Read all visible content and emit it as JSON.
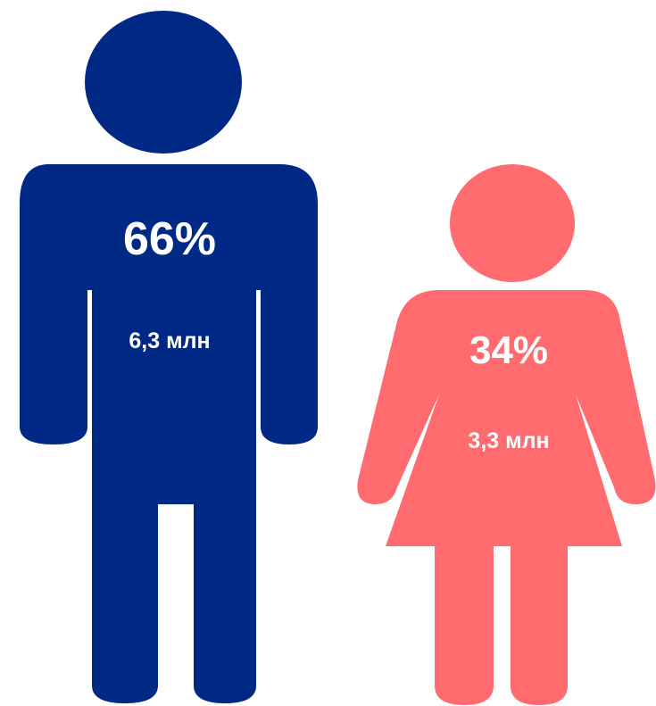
{
  "chart_data": {
    "type": "pictograph",
    "series": [
      {
        "figure": "man",
        "percent_label": "66%",
        "count_label": "6,3 млн",
        "percent": 66,
        "count_millions": 6.3,
        "color": "#002985"
      },
      {
        "figure": "woman",
        "percent_label": "34%",
        "count_label": "3,3 млн",
        "percent": 34,
        "count_millions": 3.3,
        "color": "#FF6B6E"
      }
    ]
  },
  "icons": {
    "man": "man-figure-icon",
    "woman": "woman-figure-icon"
  },
  "colors": {
    "male": "#002985",
    "female": "#FF6B6E",
    "label": "#ffffff",
    "background": "#ffffff"
  }
}
